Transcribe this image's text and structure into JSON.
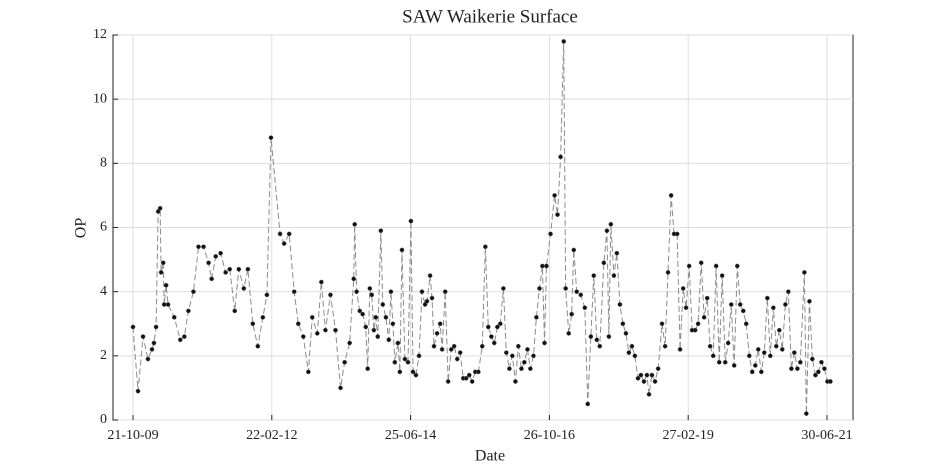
{
  "chart_data": {
    "type": "line",
    "title": "SAW Waikerie Surface",
    "xlabel": "Date",
    "ylabel": "OP",
    "x": [
      "2009-10-21",
      "2009-11-21",
      "2009-12-22",
      "2010-01-21",
      "2010-02-15",
      "2010-02-27",
      "2010-03-12",
      "2010-03-25",
      "2010-04-06",
      "2010-04-12",
      "2010-04-25",
      "2010-05-01",
      "2010-05-13",
      "2010-05-25",
      "2010-07-02",
      "2010-08-08",
      "2010-09-02",
      "2010-09-27",
      "2010-10-28",
      "2010-11-28",
      "2010-12-29",
      "2011-01-29",
      "2011-02-17",
      "2011-03-14",
      "2011-04-13",
      "2011-05-14",
      "2011-06-08",
      "2011-07-09",
      "2011-08-03",
      "2011-09-03",
      "2011-09-28",
      "2011-10-28",
      "2011-11-28",
      "2011-12-29",
      "2012-01-23",
      "2012-02-17",
      "2012-04-13",
      "2012-05-08",
      "2012-06-08",
      "2012-07-09",
      "2012-08-03",
      "2012-09-03",
      "2012-10-04",
      "2012-10-28",
      "2012-11-28",
      "2012-12-23",
      "2013-01-17",
      "2013-02-17",
      "2013-03-20",
      "2013-04-20",
      "2013-05-15",
      "2013-06-15",
      "2013-07-10",
      "2013-07-16",
      "2013-07-28",
      "2013-08-16",
      "2013-09-03",
      "2013-09-22",
      "2013-10-04",
      "2013-10-17",
      "2013-10-29",
      "2013-11-11",
      "2013-11-23",
      "2013-12-05",
      "2013-12-24",
      "2014-01-05",
      "2014-01-24",
      "2014-02-11",
      "2014-02-24",
      "2014-03-08",
      "2014-03-20",
      "2014-04-08",
      "2014-04-20",
      "2014-05-03",
      "2014-05-21",
      "2014-06-09",
      "2014-06-27",
      "2014-07-10",
      "2014-07-28",
      "2014-08-16",
      "2014-09-03",
      "2014-09-22",
      "2014-10-04",
      "2014-10-23",
      "2014-11-04",
      "2014-11-16",
      "2014-12-05",
      "2014-12-24",
      "2015-01-05",
      "2015-01-24",
      "2015-02-11",
      "2015-03-02",
      "2015-03-20",
      "2015-04-08",
      "2015-04-26",
      "2015-05-15",
      "2015-06-02",
      "2015-06-21",
      "2015-07-09",
      "2015-07-28",
      "2015-08-16",
      "2015-09-09",
      "2015-09-28",
      "2015-10-16",
      "2015-11-04",
      "2015-11-22",
      "2015-12-11",
      "2015-12-29",
      "2016-01-17",
      "2016-02-04",
      "2016-02-23",
      "2016-03-12",
      "2016-03-31",
      "2016-04-18",
      "2016-05-07",
      "2016-05-25",
      "2016-06-13",
      "2016-07-01",
      "2016-07-20",
      "2016-08-07",
      "2016-08-26",
      "2016-09-13",
      "2016-09-26",
      "2016-10-08",
      "2016-11-02",
      "2016-11-27",
      "2016-12-15",
      "2017-01-03",
      "2017-01-22",
      "2017-02-03",
      "2017-02-22",
      "2017-03-12",
      "2017-03-25",
      "2017-04-12",
      "2017-05-07",
      "2017-06-01",
      "2017-06-19",
      "2017-07-08",
      "2017-07-26",
      "2017-08-14",
      "2017-09-01",
      "2017-09-26",
      "2017-10-15",
      "2017-10-27",
      "2017-11-08",
      "2017-11-27",
      "2017-12-15",
      "2018-01-03",
      "2018-01-21",
      "2018-02-09",
      "2018-02-27",
      "2018-03-18",
      "2018-04-05",
      "2018-04-24",
      "2018-05-12",
      "2018-05-31",
      "2018-06-18",
      "2018-07-01",
      "2018-07-19",
      "2018-08-07",
      "2018-08-26",
      "2018-09-19",
      "2018-10-08",
      "2018-10-26",
      "2018-11-14",
      "2018-12-02",
      "2018-12-21",
      "2019-01-08",
      "2019-01-27",
      "2019-02-14",
      "2019-03-05",
      "2019-03-23",
      "2019-04-11",
      "2019-04-29",
      "2019-05-18",
      "2019-06-05",
      "2019-06-24",
      "2019-07-12",
      "2019-07-31",
      "2019-08-18",
      "2019-09-06",
      "2019-09-24",
      "2019-10-13",
      "2019-10-31",
      "2019-11-19",
      "2019-12-07",
      "2019-12-26",
      "2020-01-13",
      "2020-02-01",
      "2020-02-19",
      "2020-03-09",
      "2020-03-27",
      "2020-04-15",
      "2020-05-03",
      "2020-05-22",
      "2020-06-09",
      "2020-06-28",
      "2020-07-16",
      "2020-08-04",
      "2020-08-22",
      "2020-09-10",
      "2020-09-28",
      "2020-10-17",
      "2020-11-04",
      "2020-11-23",
      "2020-12-11",
      "2020-12-30",
      "2021-01-17",
      "2021-02-11",
      "2021-02-23",
      "2021-03-14",
      "2021-04-01",
      "2021-04-20",
      "2021-05-08",
      "2021-05-27",
      "2021-06-14",
      "2021-07-03",
      "2021-07-21"
    ],
    "values": [
      2.9,
      0.9,
      2.6,
      1.9,
      2.2,
      2.4,
      2.9,
      6.5,
      6.6,
      4.6,
      4.9,
      3.6,
      4.2,
      3.6,
      3.2,
      2.5,
      2.6,
      3.4,
      4.0,
      5.4,
      5.4,
      4.9,
      4.4,
      5.1,
      5.2,
      4.6,
      4.7,
      3.4,
      4.7,
      4.1,
      4.7,
      3.0,
      2.3,
      3.2,
      3.9,
      8.8,
      5.8,
      5.5,
      5.8,
      4.0,
      3.0,
      2.6,
      1.5,
      3.2,
      2.7,
      4.3,
      2.8,
      3.9,
      2.8,
      1.0,
      1.8,
      2.4,
      4.4,
      6.1,
      4.0,
      3.4,
      3.3,
      2.9,
      1.6,
      4.1,
      3.9,
      2.8,
      3.2,
      2.6,
      5.9,
      3.6,
      3.2,
      2.5,
      4.0,
      3.0,
      1.8,
      2.4,
      1.5,
      5.3,
      1.9,
      1.8,
      6.2,
      1.5,
      1.4,
      2.0,
      4.0,
      3.6,
      3.7,
      4.5,
      3.8,
      2.3,
      2.7,
      3.0,
      2.2,
      4.0,
      1.2,
      2.2,
      2.3,
      1.9,
      2.1,
      1.3,
      1.3,
      1.4,
      1.2,
      1.5,
      1.5,
      2.3,
      5.4,
      2.9,
      2.6,
      2.4,
      2.9,
      3.0,
      4.1,
      2.1,
      1.6,
      2.0,
      1.2,
      2.3,
      1.6,
      1.8,
      2.2,
      1.6,
      2.0,
      3.2,
      4.1,
      4.8,
      2.4,
      4.8,
      5.8,
      7.0,
      6.4,
      8.2,
      11.8,
      4.1,
      2.7,
      3.3,
      5.3,
      4.0,
      3.9,
      3.5,
      0.5,
      2.6,
      4.5,
      2.5,
      2.3,
      4.9,
      5.9,
      2.6,
      6.1,
      4.5,
      5.2,
      3.6,
      3.0,
      2.7,
      2.1,
      2.3,
      2.0,
      1.3,
      1.4,
      1.2,
      1.4,
      0.8,
      1.4,
      1.2,
      1.6,
      3.0,
      2.3,
      4.6,
      7.0,
      5.8,
      5.8,
      2.2,
      4.1,
      3.5,
      4.8,
      2.8,
      2.8,
      3.0,
      4.9,
      3.2,
      3.8,
      2.3,
      2.0,
      4.8,
      1.8,
      4.5,
      1.8,
      2.4,
      3.6,
      1.7,
      4.8,
      3.6,
      3.4,
      3.0,
      2.0,
      1.5,
      1.7,
      2.2,
      1.5,
      2.1,
      3.8,
      2.0,
      3.5,
      2.3,
      2.8,
      2.2,
      3.6,
      4.0,
      1.6,
      2.1,
      1.6,
      1.8,
      4.6,
      0.2,
      3.7,
      1.9,
      1.4,
      1.5,
      1.8,
      1.6,
      1.2,
      1.2
    ],
    "line_color": "#8c8c8c",
    "marker_color": "#111111",
    "line_style": "dashed",
    "xlim": [
      "2009-06-20",
      "2021-12-07"
    ],
    "xticks": [
      {
        "value": "2009-10-21",
        "label": "21-10-09"
      },
      {
        "value": "2012-02-22",
        "label": "22-02-12"
      },
      {
        "value": "2014-06-25",
        "label": "25-06-14"
      },
      {
        "value": "2016-10-26",
        "label": "26-10-16"
      },
      {
        "value": "2019-02-27",
        "label": "27-02-19"
      },
      {
        "value": "2021-06-30",
        "label": "30-06-21"
      }
    ],
    "ylim": [
      0,
      12
    ],
    "yticks": [
      0,
      2,
      4,
      6,
      8,
      10,
      12
    ],
    "grid": true
  }
}
